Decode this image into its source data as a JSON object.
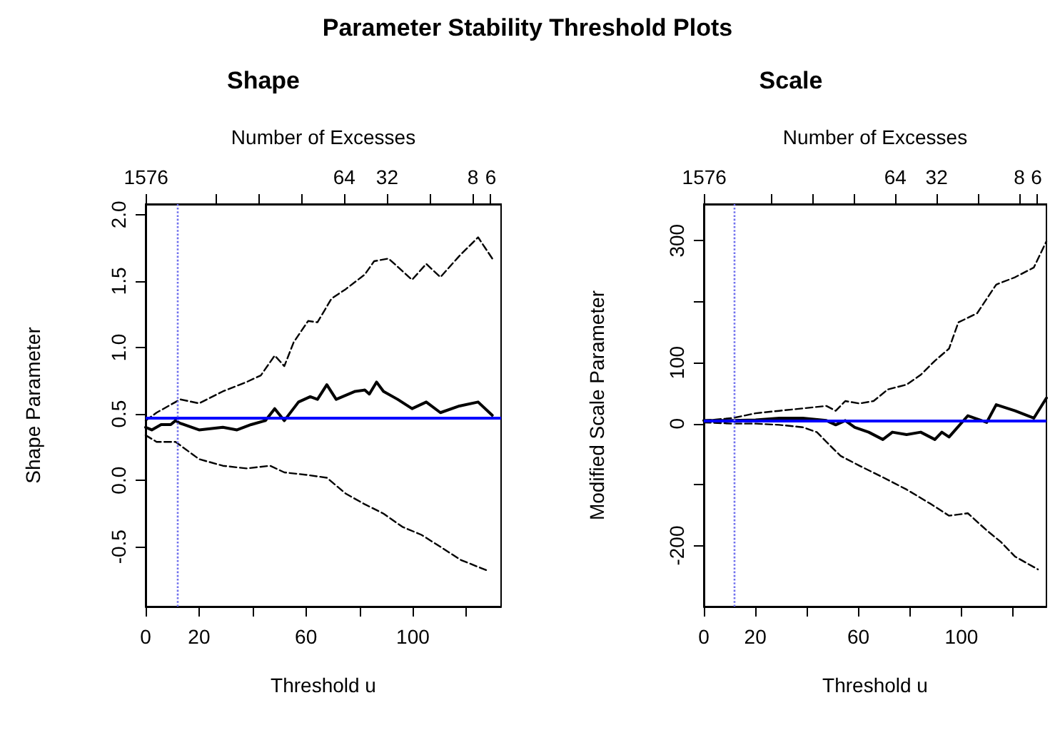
{
  "chart_data": [
    {
      "type": "line",
      "title": "Shape",
      "annotations": [
        "Parameter Stability Threshold Plots"
      ],
      "xlabel": "Threshold u",
      "ylabel": "Shape Parameter",
      "x2label": "Number of Excesses",
      "marker": "none",
      "grid": false,
      "log": "x2",
      "xlim": [
        0,
        133
      ],
      "xticks": [
        0,
        20,
        {
          "value": 40,
          "label": null
        },
        60,
        {
          "value": 80,
          "label": null
        },
        100,
        {
          "value": 120,
          "label": null
        }
      ],
      "x2lim": [
        1590,
        5.07
      ],
      "x2ticks": [
        1576,
        {
          "value": 512,
          "label": null
        },
        {
          "value": 256,
          "label": null
        },
        {
          "value": 128,
          "label": null
        },
        64,
        32,
        {
          "value": 16,
          "label": null
        },
        8,
        6
      ],
      "ylim": [
        -0.95,
        2.08
      ],
      "yticks": [
        {
          "value": -0.5,
          "label": "-0.5"
        },
        {
          "value": 0,
          "label": "0.0"
        },
        {
          "value": 0.5,
          "label": "0.5"
        },
        {
          "value": 1,
          "label": "1.0"
        },
        {
          "value": 1.5,
          "label": "1.5"
        },
        {
          "value": 2,
          "label": "2.0"
        }
      ],
      "ref_lines": [
        {
          "axis": "y",
          "value": 0.47,
          "color": "#0000ff",
          "line_style": "solid"
        },
        {
          "axis": "x",
          "value": 11.7,
          "color": "#7070ee",
          "line_style": "dotted"
        }
      ],
      "series": [
        {
          "color": "#000000",
          "line_style": "solid",
          "x": [
            0,
            2.3,
            5.8,
            9.4,
            11.2,
            12.9,
            20,
            28.9,
            34.2,
            39.5,
            44.8,
            48.3,
            51.9,
            57.2,
            61.6,
            64.3,
            67.8,
            71.3,
            78.4,
            82,
            83.7,
            86.4,
            89,
            94.3,
            99.7,
            105,
            110.3,
            117.4,
            124.4,
            129.7
          ],
          "values": [
            0.4,
            0.38,
            0.42,
            0.42,
            0.45,
            0.43,
            0.38,
            0.4,
            0.38,
            0.42,
            0.45,
            0.54,
            0.45,
            0.59,
            0.63,
            0.61,
            0.72,
            0.61,
            0.67,
            0.68,
            0.65,
            0.74,
            0.67,
            0.61,
            0.54,
            0.59,
            0.51,
            0.56,
            0.59,
            0.49
          ]
        },
        {
          "color": "#000000",
          "line_style": "dashed",
          "x": [
            0,
            4.1,
            11.2,
            12.9,
            20,
            28.9,
            37.7,
            43.1,
            48.3,
            51.9,
            55.4,
            60.8,
            64.3,
            69.6,
            74.9,
            82,
            85.5,
            90.9,
            99.7,
            105,
            110.3,
            117.4,
            124.4,
            129.7
          ],
          "values": [
            0.45,
            0.51,
            0.59,
            0.61,
            0.58,
            0.67,
            0.74,
            0.79,
            0.94,
            0.86,
            1.04,
            1.2,
            1.19,
            1.37,
            1.44,
            1.55,
            1.65,
            1.67,
            1.51,
            1.63,
            1.53,
            1.69,
            1.83,
            1.67
          ]
        },
        {
          "color": "#000000",
          "line_style": "dashed",
          "x": [
            0,
            4.1,
            11.2,
            20,
            28.9,
            37.7,
            46.6,
            51.9,
            60.8,
            67.8,
            74.9,
            82,
            89,
            96.1,
            103.2,
            110.3,
            118,
            128
          ],
          "values": [
            0.34,
            0.29,
            0.29,
            0.16,
            0.11,
            0.09,
            0.11,
            0.06,
            0.04,
            0.02,
            -0.1,
            -0.18,
            -0.25,
            -0.35,
            -0.41,
            -0.5,
            -0.6,
            -0.68
          ]
        }
      ]
    },
    {
      "type": "line",
      "title": "Scale",
      "xlabel": "Threshold u",
      "ylabel": "Modified Scale Parameter",
      "x2label": "Number of Excesses",
      "marker": "none",
      "grid": false,
      "log": "x2",
      "xlim": [
        0,
        133
      ],
      "xticks": [
        0,
        20,
        {
          "value": 40,
          "label": null
        },
        60,
        {
          "value": 80,
          "label": null
        },
        100,
        {
          "value": 120,
          "label": null
        }
      ],
      "x2lim": [
        1590,
        5.07
      ],
      "x2ticks": [
        1576,
        {
          "value": 512,
          "label": null
        },
        {
          "value": 256,
          "label": null
        },
        {
          "value": 128,
          "label": null
        },
        64,
        32,
        {
          "value": 16,
          "label": null
        },
        8,
        6
      ],
      "ylim": [
        -300,
        360
      ],
      "yticks": [
        -200,
        {
          "value": -100,
          "label": null
        },
        0,
        100,
        {
          "value": 200,
          "label": null
        },
        300
      ],
      "ref_lines": [
        {
          "axis": "y",
          "value": 5,
          "color": "#0000ff",
          "line_style": "solid"
        },
        {
          "axis": "x",
          "value": 11.7,
          "color": "#7070ee",
          "line_style": "dotted"
        }
      ],
      "series": [
        {
          "color": "#000000",
          "line_style": "solid",
          "x": [
            0,
            11,
            20.1,
            29.3,
            38.4,
            47.6,
            51.2,
            54.9,
            58.6,
            64,
            69.5,
            73.2,
            78.7,
            84.2,
            89.7,
            92.4,
            95.2,
            102.5,
            109.8,
            113.5,
            120.8,
            128.1,
            133
          ],
          "values": [
            5,
            5,
            6,
            9,
            9,
            5,
            -2,
            5,
            -6,
            -14,
            -26,
            -14,
            -18,
            -14,
            -26,
            -14,
            -22,
            13,
            2,
            31,
            21,
            9,
            42
          ]
        },
        {
          "color": "#000000",
          "line_style": "dashed",
          "x": [
            0,
            11,
            20.1,
            29.3,
            38.4,
            47.6,
            51.2,
            54.9,
            60.4,
            65.9,
            71.4,
            78.7,
            84.2,
            89.7,
            95.2,
            98.8,
            106.1,
            113.5,
            120.8,
            128.1,
            133
          ],
          "values": [
            5,
            9,
            17,
            21,
            25,
            29,
            21,
            37,
            33,
            37,
            56,
            64,
            80,
            103,
            123,
            166,
            181,
            228,
            240,
            256,
            299
          ]
        },
        {
          "color": "#000000",
          "line_style": "dashed",
          "x": [
            0,
            11,
            20.1,
            29.3,
            38.4,
            43.9,
            47.6,
            53.1,
            60.4,
            69.5,
            78.7,
            87.8,
            95.2,
            102.5,
            109.8,
            115.3,
            120.8,
            129.7
          ],
          "values": [
            2,
            0,
            0,
            -2,
            -6,
            -14,
            -30,
            -53,
            -69,
            -88,
            -108,
            -131,
            -151,
            -147,
            -175,
            -194,
            -218,
            -239
          ]
        }
      ]
    }
  ]
}
